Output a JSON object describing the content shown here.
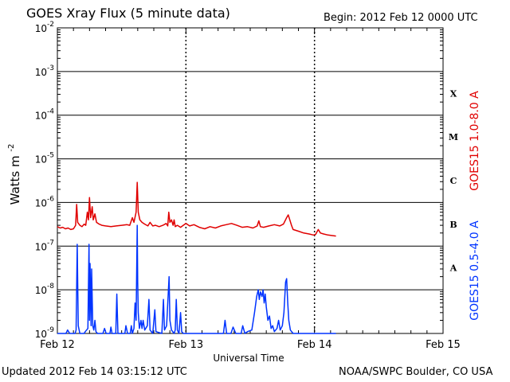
{
  "header": {
    "title": "GOES Xray Flux (5 minute data)",
    "begin": "Begin:  2012 Feb 12 0000 UTC"
  },
  "footer": {
    "updated": "Updated 2012 Feb 14 03:15:12 UTC",
    "credit": "NOAA/SWPC Boulder, CO USA"
  },
  "chart_data": {
    "type": "line",
    "title": "GOES Xray Flux (5 minute data)",
    "xlabel": "Universal Time",
    "ylabel": "Watts m",
    "ylabel_sup": "-2",
    "yscale": "log",
    "ylim": [
      1e-09,
      0.01
    ],
    "xlim": [
      0,
      72
    ],
    "x_unit": "hours since 2012 Feb 12 0000 UTC",
    "x_ticks": [
      {
        "x": 0,
        "label": "Feb 12"
      },
      {
        "x": 24,
        "label": "Feb 13"
      },
      {
        "x": 48,
        "label": "Feb 14"
      },
      {
        "x": 72,
        "label": "Feb 15"
      }
    ],
    "y_ticks": [
      {
        "base": "10",
        "exp": "-9",
        "value": 1e-09
      },
      {
        "base": "10",
        "exp": "-8",
        "value": 1e-08
      },
      {
        "base": "10",
        "exp": "-7",
        "value": 1e-07
      },
      {
        "base": "10",
        "exp": "-6",
        "value": 1e-06
      },
      {
        "base": "10",
        "exp": "-5",
        "value": 1e-05
      },
      {
        "base": "10",
        "exp": "-4",
        "value": 0.0001
      },
      {
        "base": "10",
        "exp": "-3",
        "value": 0.001
      },
      {
        "base": "10",
        "exp": "-2",
        "value": 0.01
      }
    ],
    "flare_classes": [
      {
        "label": "A",
        "value": 3.16e-08
      },
      {
        "label": "B",
        "value": 3.16e-07
      },
      {
        "label": "C",
        "value": 3.16e-06
      },
      {
        "label": "M",
        "value": 3.16e-05
      },
      {
        "label": "X",
        "value": 0.000316
      }
    ],
    "grid": true,
    "series": [
      {
        "name": "GOES15 1.0-8.0 A",
        "color": "#e00000",
        "points": [
          [
            0,
            2.8e-07
          ],
          [
            0.5,
            2.6e-07
          ],
          [
            1,
            2.7e-07
          ],
          [
            1.5,
            2.5e-07
          ],
          [
            2,
            2.6e-07
          ],
          [
            2.5,
            2.4e-07
          ],
          [
            3,
            2.5e-07
          ],
          [
            3.4,
            3e-07
          ],
          [
            3.6,
            9e-07
          ],
          [
            3.8,
            3.5e-07
          ],
          [
            4.2,
            3e-07
          ],
          [
            4.6,
            2.8e-07
          ],
          [
            5.0,
            3.2e-07
          ],
          [
            5.3,
            3e-07
          ],
          [
            5.6,
            6e-07
          ],
          [
            5.8,
            4e-07
          ],
          [
            6.0,
            1.3e-06
          ],
          [
            6.2,
            4.5e-07
          ],
          [
            6.5,
            8e-07
          ],
          [
            6.7,
            4e-07
          ],
          [
            7.0,
            5.5e-07
          ],
          [
            7.3,
            3.5e-07
          ],
          [
            7.8,
            3.2e-07
          ],
          [
            8.3,
            3e-07
          ],
          [
            9,
            2.9e-07
          ],
          [
            10,
            2.8e-07
          ],
          [
            11,
            2.9e-07
          ],
          [
            12,
            3e-07
          ],
          [
            13,
            3.1e-07
          ],
          [
            13.5,
            3e-07
          ],
          [
            14,
            4.5e-07
          ],
          [
            14.3,
            3.5e-07
          ],
          [
            14.7,
            6e-07
          ],
          [
            14.9,
            2.9e-06
          ],
          [
            15.1,
            6e-07
          ],
          [
            15.4,
            4e-07
          ],
          [
            15.8,
            3.5e-07
          ],
          [
            16.3,
            3.2e-07
          ],
          [
            16.9,
            2.9e-07
          ],
          [
            17.3,
            3.5e-07
          ],
          [
            17.8,
            2.9e-07
          ],
          [
            18.3,
            3e-07
          ],
          [
            19,
            2.8e-07
          ],
          [
            19.7,
            3e-07
          ],
          [
            20.3,
            3.3e-07
          ],
          [
            20.6,
            2.9e-07
          ],
          [
            20.8,
            6e-07
          ],
          [
            21.0,
            3.5e-07
          ],
          [
            21.3,
            4e-07
          ],
          [
            21.6,
            3e-07
          ],
          [
            21.8,
            4e-07
          ],
          [
            22.0,
            2.8e-07
          ],
          [
            22.4,
            3e-07
          ],
          [
            23,
            2.7e-07
          ],
          [
            23.5,
            3e-07
          ],
          [
            24,
            3.3e-07
          ],
          [
            24.7,
            2.9e-07
          ],
          [
            25.5,
            3.1e-07
          ],
          [
            26.5,
            2.7e-07
          ],
          [
            27.5,
            2.5e-07
          ],
          [
            28.5,
            2.8e-07
          ],
          [
            29.5,
            2.6e-07
          ],
          [
            30.5,
            2.9e-07
          ],
          [
            31.5,
            3.1e-07
          ],
          [
            32.5,
            3.3e-07
          ],
          [
            33.5,
            3e-07
          ],
          [
            34.5,
            2.7e-07
          ],
          [
            35.5,
            2.8e-07
          ],
          [
            36.5,
            2.6e-07
          ],
          [
            37.3,
            2.9e-07
          ],
          [
            37.6,
            3.8e-07
          ],
          [
            37.9,
            2.8e-07
          ],
          [
            38.5,
            2.7e-07
          ],
          [
            39.5,
            2.9e-07
          ],
          [
            40.5,
            3.1e-07
          ],
          [
            41.5,
            2.9e-07
          ],
          [
            42.2,
            3.2e-07
          ],
          [
            42.8,
            4.5e-07
          ],
          [
            43.1,
            5.2e-07
          ],
          [
            43.4,
            4e-07
          ],
          [
            43.7,
            3e-07
          ],
          [
            44,
            2.4e-07
          ],
          [
            45,
            2.2e-07
          ],
          [
            46,
            2e-07
          ],
          [
            47,
            1.9e-07
          ],
          [
            47.8,
            1.8e-07
          ],
          [
            48.2,
            1.85e-07
          ],
          [
            48.7,
            2.4e-07
          ],
          [
            49.1,
            2e-07
          ],
          [
            49.7,
            1.9e-07
          ],
          [
            50.5,
            1.8e-07
          ],
          [
            51.3,
            1.75e-07
          ],
          [
            52,
            1.7e-07
          ]
        ]
      },
      {
        "name": "GOES15 0.5-4.0 A",
        "color": "#0033ff",
        "points": [
          [
            0,
            1e-09
          ],
          [
            1.6,
            1e-09
          ],
          [
            1.9,
            1.2e-09
          ],
          [
            2.3,
            1e-09
          ],
          [
            3.3,
            1e-09
          ],
          [
            3.5,
            1.2e-09
          ],
          [
            3.7,
            1.1e-07
          ],
          [
            3.9,
            1.5e-09
          ],
          [
            4.2,
            1e-09
          ],
          [
            5.0,
            1e-09
          ],
          [
            5.2,
            1.1e-09
          ],
          [
            5.7,
            1.3e-09
          ],
          [
            5.9,
            1.1e-07
          ],
          [
            6.0,
            2e-09
          ],
          [
            6.1,
            4e-08
          ],
          [
            6.3,
            1.5e-09
          ],
          [
            6.4,
            3e-08
          ],
          [
            6.6,
            1.5e-09
          ],
          [
            6.8,
            1.2e-09
          ],
          [
            7.0,
            2e-09
          ],
          [
            7.2,
            1.1e-09
          ],
          [
            7.5,
            1e-09
          ],
          [
            8.5,
            1e-09
          ],
          [
            8.8,
            1.3e-09
          ],
          [
            9.1,
            1e-09
          ],
          [
            9.8,
            1e-09
          ],
          [
            10,
            1.4e-09
          ],
          [
            10.2,
            1e-09
          ],
          [
            10.9,
            1e-09
          ],
          [
            11.1,
            8e-09
          ],
          [
            11.3,
            1e-09
          ],
          [
            12.6,
            1e-09
          ],
          [
            12.8,
            1.5e-09
          ],
          [
            13.1,
            1e-09
          ],
          [
            13.6,
            1e-09
          ],
          [
            13.8,
            1.5e-09
          ],
          [
            14.0,
            1e-09
          ],
          [
            14.3,
            1.3e-09
          ],
          [
            14.5,
            5e-09
          ],
          [
            14.7,
            2e-09
          ],
          [
            14.9,
            3e-07
          ],
          [
            15.0,
            1.5e-08
          ],
          [
            15.1,
            3e-09
          ],
          [
            15.3,
            1.3e-09
          ],
          [
            15.6,
            2e-09
          ],
          [
            15.8,
            1.3e-09
          ],
          [
            16.0,
            2e-09
          ],
          [
            16.3,
            1.2e-09
          ],
          [
            16.8,
            1.5e-09
          ],
          [
            17.1,
            6e-09
          ],
          [
            17.3,
            1.2e-09
          ],
          [
            17.8,
            1e-09
          ],
          [
            18.2,
            3.5e-09
          ],
          [
            18.4,
            1.1e-09
          ],
          [
            19.5,
            1e-09
          ],
          [
            19.8,
            6e-09
          ],
          [
            20.0,
            1.2e-09
          ],
          [
            20.4,
            1.5e-09
          ],
          [
            20.7,
            8e-09
          ],
          [
            20.85,
            2e-08
          ],
          [
            21.0,
            2e-09
          ],
          [
            21.3,
            1.2e-09
          ],
          [
            21.8,
            1e-09
          ],
          [
            22.0,
            1.2e-09
          ],
          [
            22.2,
            6e-09
          ],
          [
            22.4,
            1.2e-09
          ],
          [
            22.7,
            1e-09
          ],
          [
            23.0,
            3e-09
          ],
          [
            23.2,
            1.1e-09
          ],
          [
            23.5,
            1e-09
          ],
          [
            24.0,
            1e-09
          ],
          [
            31.0,
            1e-09
          ],
          [
            31.3,
            2e-09
          ],
          [
            31.6,
            1e-09
          ],
          [
            32.4,
            1e-09
          ],
          [
            32.8,
            1.4e-09
          ],
          [
            33.3,
            1e-09
          ],
          [
            34.3,
            1e-09
          ],
          [
            34.6,
            1.5e-09
          ],
          [
            35.0,
            1e-09
          ],
          [
            35.5,
            1.1e-09
          ],
          [
            36.3,
            1.2e-09
          ],
          [
            36.8,
            3e-09
          ],
          [
            37.2,
            7e-09
          ],
          [
            37.5,
            1e-08
          ],
          [
            37.7,
            6e-09
          ],
          [
            37.9,
            9e-09
          ],
          [
            38.2,
            7e-09
          ],
          [
            38.4,
            1e-08
          ],
          [
            38.6,
            5e-09
          ],
          [
            38.8,
            8e-09
          ],
          [
            39.0,
            4e-09
          ],
          [
            39.3,
            2e-09
          ],
          [
            39.6,
            2.5e-09
          ],
          [
            39.9,
            1.3e-09
          ],
          [
            40.2,
            1.5e-09
          ],
          [
            40.5,
            1.1e-09
          ],
          [
            41.0,
            1.3e-09
          ],
          [
            41.3,
            2e-09
          ],
          [
            41.6,
            1.2e-09
          ],
          [
            42.0,
            1.5e-09
          ],
          [
            42.3,
            3e-09
          ],
          [
            42.6,
            1.5e-08
          ],
          [
            42.8,
            1.8e-08
          ],
          [
            43.0,
            5e-09
          ],
          [
            43.2,
            2e-09
          ],
          [
            43.5,
            1.2e-09
          ],
          [
            44.0,
            1e-09
          ],
          [
            52,
            1e-09
          ]
        ]
      }
    ]
  }
}
